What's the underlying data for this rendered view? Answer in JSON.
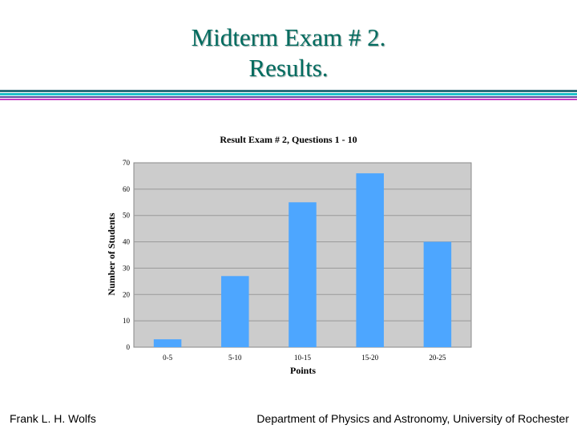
{
  "slide": {
    "title_line1": "Midterm Exam # 2.",
    "title_line2": "Results."
  },
  "footer": {
    "author": "Frank L. H. Wolfs",
    "department": "Department of Physics and Astronomy, University of Rochester"
  },
  "colors": {
    "bar": "#4da6ff",
    "plot_background": "#cccccc",
    "grid": "#999999",
    "title": "#006b5f"
  },
  "chart_data": {
    "type": "bar",
    "title": "Result Exam # 2, Questions 1 - 10",
    "xlabel": "Points",
    "ylabel": "Number of Students",
    "categories": [
      "0-5",
      "5-10",
      "10-15",
      "15-20",
      "20-25"
    ],
    "values": [
      3,
      27,
      55,
      66,
      40
    ],
    "ylim": [
      0,
      70
    ],
    "yticks": [
      0,
      10,
      20,
      30,
      40,
      50,
      60,
      70
    ],
    "grid": true,
    "legend": "none"
  }
}
